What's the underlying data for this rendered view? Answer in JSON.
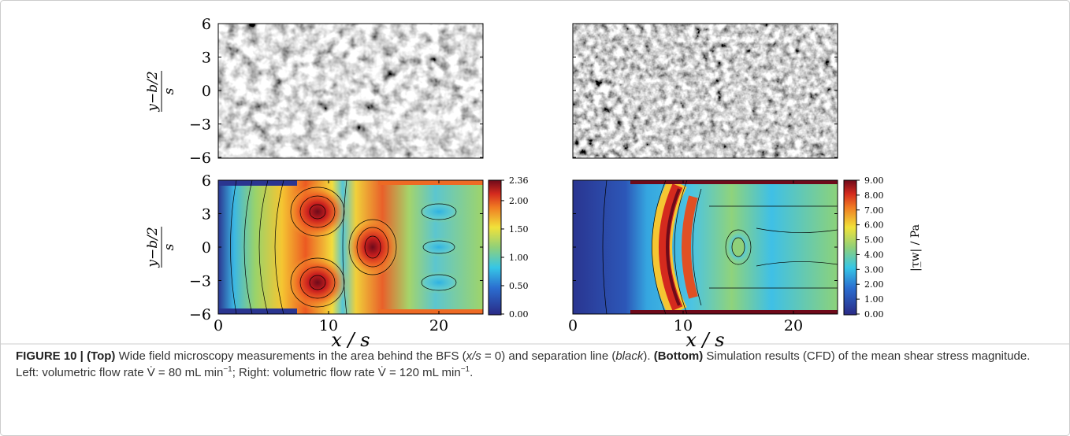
{
  "figure": {
    "top": {
      "ylim": [
        -6,
        6
      ],
      "yticks": [
        6,
        3,
        0,
        {
          "value": -3,
          "label": "−3"
        },
        {
          "value": -6,
          "label": "−6"
        }
      ],
      "ylabel": {
        "numerator": "y−b/2",
        "denominator": "s"
      }
    },
    "bottom": {
      "ylim": [
        -6,
        6
      ],
      "yticks": [
        6,
        3,
        0,
        {
          "value": -3,
          "label": "−3"
        },
        {
          "value": -6,
          "label": "−6"
        }
      ],
      "ylabel": {
        "numerator": "y−b/2",
        "denominator": "s"
      },
      "xlim": [
        0,
        24
      ],
      "xticks": [
        0,
        10,
        20
      ],
      "xlabel": "x / s",
      "colorbars": [
        {
          "clim": [
            0,
            2.36
          ],
          "ticks": [
            {
              "value": 2.36,
              "label": "2.36"
            },
            {
              "value": 2,
              "label": "2.00"
            },
            {
              "value": 1.5,
              "label": "1.50"
            },
            {
              "value": 1,
              "label": "1.00"
            },
            {
              "value": 0.5,
              "label": "0.50"
            },
            {
              "value": 0,
              "label": "0.00"
            }
          ]
        },
        {
          "clim": [
            0,
            9
          ],
          "ticks": [
            {
              "value": 9,
              "label": "9.00"
            },
            {
              "value": 8,
              "label": "8.00"
            },
            {
              "value": 7,
              "label": "7.00"
            },
            {
              "value": 6,
              "label": "6.00"
            },
            {
              "value": 5,
              "label": "5.00"
            },
            {
              "value": 4,
              "label": "4.00"
            },
            {
              "value": 3,
              "label": "3.00"
            },
            {
              "value": 2,
              "label": "2.00"
            },
            {
              "value": 1,
              "label": "1.00"
            },
            {
              "value": 0,
              "label": "0.00"
            }
          ],
          "label": "|τ̲w| / Pa"
        }
      ]
    }
  },
  "caption": {
    "label": "FIGURE 10 |",
    "parts": [
      "(Top)",
      " Wide field microscopy measurements in the area behind the BFS (",
      "x/s",
      " = 0) and separation line (",
      "black",
      "). ",
      "(Bottom)",
      " Simulation results (CFD) of the mean shear stress magnitude. Left: volumetric flow rate V̇ = 80 mL min",
      "−1",
      "; Right: volumetric flow rate V̇ = 120 mL min",
      "−1",
      "."
    ]
  }
}
